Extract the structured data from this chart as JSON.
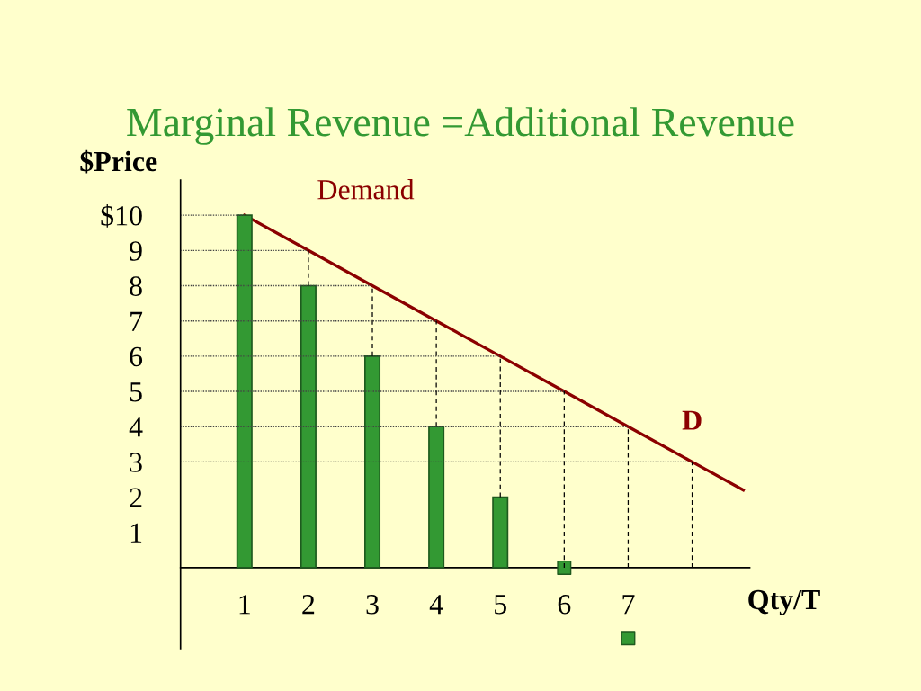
{
  "chart_data": {
    "type": "bar",
    "title": "Marginal Revenue =Additional Revenue",
    "xlabel": "Qty/T",
    "ylabel": "$Price",
    "xlim": [
      0,
      8.9
    ],
    "ylim": [
      -2.3,
      11
    ],
    "xticks": [
      1,
      2,
      3,
      4,
      5,
      6,
      7
    ],
    "yticks": [
      {
        "value": 10,
        "label": "$10"
      },
      9,
      8,
      7,
      6,
      5,
      4,
      3,
      2,
      1
    ],
    "series": [
      {
        "type": "line",
        "name": "Demand",
        "line_style": "solid",
        "color": "#8b0000",
        "x": [
          1,
          2,
          3,
          4,
          5,
          6,
          7,
          8,
          8.8
        ],
        "values": [
          10,
          9,
          8,
          7,
          6,
          5,
          4,
          3,
          2.2
        ],
        "errors": [
          null,
          [
            8,
            9
          ],
          [
            6,
            8
          ],
          [
            4,
            7
          ],
          [
            2,
            6
          ],
          [
            0,
            5
          ],
          [
            0,
            4
          ],
          [
            0,
            3
          ],
          null
        ]
      },
      {
        "type": "line",
        "line_style": "dotted",
        "color": "#444444",
        "x": [
          0,
          1
        ],
        "values": [
          10,
          10
        ]
      },
      {
        "type": "line",
        "line_style": "dotted",
        "color": "#444444",
        "x": [
          0,
          2
        ],
        "values": [
          9,
          9
        ]
      },
      {
        "type": "line",
        "line_style": "dotted",
        "color": "#444444",
        "x": [
          0,
          3
        ],
        "values": [
          8,
          8
        ]
      },
      {
        "type": "line",
        "line_style": "dotted",
        "color": "#444444",
        "x": [
          0,
          4
        ],
        "values": [
          7,
          7
        ]
      },
      {
        "type": "line",
        "line_style": "dotted",
        "color": "#444444",
        "x": [
          0,
          5
        ],
        "values": [
          6,
          6
        ]
      },
      {
        "type": "line",
        "line_style": "dotted",
        "color": "#444444",
        "x": [
          0,
          6
        ],
        "values": [
          5,
          5
        ]
      },
      {
        "type": "line",
        "line_style": "dotted",
        "color": "#444444",
        "x": [
          0,
          7
        ],
        "values": [
          4,
          4
        ]
      },
      {
        "type": "line",
        "line_style": "dotted",
        "color": "#444444",
        "x": [
          0,
          8
        ],
        "values": [
          3,
          3
        ]
      },
      {
        "color": "#339933",
        "x": [
          1,
          2,
          3,
          4,
          5
        ],
        "values": [
          10,
          8,
          6,
          4,
          2
        ]
      },
      {
        "type": "scatter",
        "marker": "square",
        "color": "#339933",
        "x": [
          6,
          7
        ],
        "values": [
          0,
          -2
        ]
      }
    ],
    "annotations": [
      "D"
    ]
  }
}
